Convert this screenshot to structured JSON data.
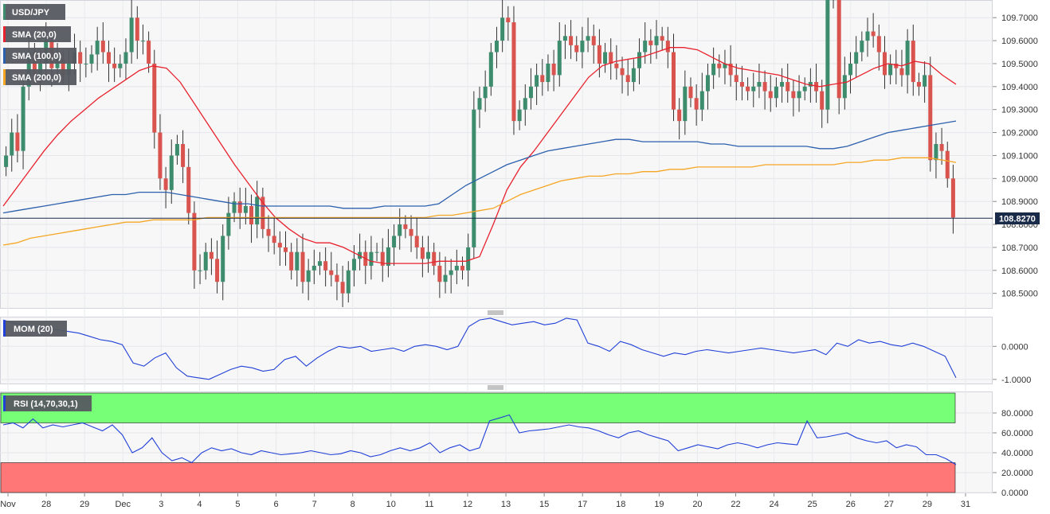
{
  "chart_data": [
    {
      "type": "candlestick",
      "symbol": "USD/JPY",
      "title": "USD/JPY",
      "x_labels": [
        "Nov",
        "28",
        "29",
        "Dec",
        "3",
        "4",
        "5",
        "6",
        "7",
        "8",
        "10",
        "11",
        "12",
        "13",
        "15",
        "17",
        "18",
        "19",
        "20",
        "22",
        "24",
        "25",
        "26",
        "27",
        "29",
        "31"
      ],
      "ylim": [
        108.44,
        109.77
      ],
      "y_ticks": [
        "109.7000",
        "109.6000",
        "109.5000",
        "109.4000",
        "109.3000",
        "109.2000",
        "109.1000",
        "109.0000",
        "108.9000",
        "108.8000",
        "108.7000",
        "108.6000",
        "108.5000"
      ],
      "last_price": "108.8270",
      "last_price_value": 108.827,
      "colors": {
        "up": "#3d8c6e",
        "down": "#d9534f",
        "sma20": "#e8222e",
        "sma100": "#2c5fad",
        "sma200": "#f5a623",
        "price_line": "#1a2b4a"
      },
      "candles_close": [
        109.1,
        109.2,
        109.12,
        109.4,
        109.55,
        109.45,
        109.5,
        109.6,
        109.48,
        109.52,
        109.45,
        109.5,
        109.55,
        109.5,
        109.5,
        109.54,
        109.6,
        109.55,
        109.5,
        109.48,
        109.5,
        109.55,
        109.7,
        109.6,
        109.6,
        109.5,
        109.2,
        109.0,
        108.95,
        109.1,
        109.15,
        109.05,
        108.85,
        108.6,
        108.6,
        108.68,
        108.65,
        108.55,
        108.75,
        108.85,
        108.9,
        108.85,
        108.88,
        108.8,
        108.92,
        108.78,
        108.75,
        108.72,
        108.7,
        108.68,
        108.6,
        108.68,
        108.55,
        108.6,
        108.62,
        108.64,
        108.6,
        108.58,
        108.55,
        108.5,
        108.6,
        108.65,
        108.68,
        108.62,
        108.68,
        108.68,
        108.62,
        108.7,
        108.75,
        108.8,
        108.78,
        108.75,
        108.7,
        108.65,
        108.68,
        108.62,
        108.55,
        108.58,
        108.6,
        108.62,
        108.6,
        108.7,
        109.3,
        109.35,
        109.4,
        109.55,
        109.6,
        109.7,
        109.68,
        109.25,
        109.3,
        109.35,
        109.4,
        109.45,
        109.42,
        109.5,
        109.45,
        109.6,
        109.62,
        109.58,
        109.55,
        109.6,
        109.62,
        109.58,
        109.5,
        109.55,
        109.5,
        109.48,
        109.45,
        109.42,
        109.48,
        109.55,
        109.6,
        109.58,
        109.62,
        109.6,
        109.55,
        109.3,
        109.25,
        109.4,
        109.35,
        109.3,
        109.38,
        109.45,
        109.5,
        109.48,
        109.5,
        109.45,
        109.42,
        109.4,
        109.38,
        109.4,
        109.42,
        109.38,
        109.35,
        109.4,
        109.42,
        109.38,
        109.35,
        109.38,
        109.4,
        109.42,
        109.38,
        109.3,
        109.78,
        109.78,
        109.35,
        109.45,
        109.5,
        109.55,
        109.6,
        109.64,
        109.62,
        109.55,
        109.45,
        109.5,
        109.48,
        109.45,
        109.6,
        109.42,
        109.4,
        109.45,
        109.08,
        109.15,
        109.12,
        109.0,
        108.83
      ],
      "series": [
        {
          "name": "SMA (20,0)",
          "color": "#e8222e",
          "values": [
            108.88,
            108.96,
            109.04,
            109.12,
            109.19,
            109.25,
            109.3,
            109.35,
            109.39,
            109.43,
            109.47,
            109.49,
            109.48,
            109.42,
            109.33,
            109.24,
            109.15,
            109.06,
            108.98,
            108.9,
            108.83,
            108.78,
            108.74,
            108.72,
            108.72,
            108.7,
            108.67,
            108.64,
            108.63,
            108.63,
            108.63,
            108.63,
            108.64,
            108.64,
            108.64,
            108.66,
            108.8,
            108.95,
            109.05,
            109.12,
            109.2,
            109.28,
            109.36,
            109.44,
            109.49,
            109.51,
            109.52,
            109.53,
            109.55,
            109.57,
            109.57,
            109.56,
            109.53,
            109.5,
            109.48,
            109.47,
            109.46,
            109.45,
            109.43,
            109.41,
            109.4,
            109.41,
            109.42,
            109.45,
            109.48,
            109.5,
            109.49,
            109.51,
            109.5,
            109.45,
            109.41
          ]
        },
        {
          "name": "SMA (100,0)",
          "color": "#2c5fad",
          "values": [
            108.85,
            108.86,
            108.87,
            108.88,
            108.89,
            108.9,
            108.91,
            108.92,
            108.93,
            108.93,
            108.94,
            108.94,
            108.94,
            108.93,
            108.92,
            108.91,
            108.9,
            108.89,
            108.89,
            108.88,
            108.88,
            108.88,
            108.88,
            108.88,
            108.88,
            108.87,
            108.87,
            108.87,
            108.88,
            108.88,
            108.88,
            108.88,
            108.89,
            108.93,
            108.97,
            109.0,
            109.03,
            109.06,
            109.08,
            109.1,
            109.12,
            109.13,
            109.14,
            109.15,
            109.16,
            109.17,
            109.17,
            109.16,
            109.16,
            109.16,
            109.16,
            109.16,
            109.15,
            109.15,
            109.14,
            109.14,
            109.14,
            109.14,
            109.14,
            109.14,
            109.13,
            109.13,
            109.14,
            109.16,
            109.18,
            109.2,
            109.21,
            109.22,
            109.23,
            109.24,
            109.25
          ]
        },
        {
          "name": "SMA (200,0)",
          "color": "#f5a623",
          "values": [
            108.71,
            108.72,
            108.74,
            108.75,
            108.76,
            108.77,
            108.78,
            108.79,
            108.8,
            108.81,
            108.81,
            108.82,
            108.82,
            108.82,
            108.82,
            108.83,
            108.83,
            108.83,
            108.83,
            108.83,
            108.83,
            108.83,
            108.83,
            108.83,
            108.83,
            108.83,
            108.83,
            108.83,
            108.83,
            108.83,
            108.83,
            108.83,
            108.84,
            108.84,
            108.85,
            108.86,
            108.87,
            108.9,
            108.93,
            108.95,
            108.97,
            108.99,
            109.0,
            109.01,
            109.01,
            109.02,
            109.02,
            109.03,
            109.03,
            109.04,
            109.04,
            109.05,
            109.05,
            109.05,
            109.05,
            109.05,
            109.06,
            109.06,
            109.06,
            109.06,
            109.06,
            109.06,
            109.07,
            109.07,
            109.08,
            109.08,
            109.09,
            109.09,
            109.09,
            109.08,
            109.07
          ]
        }
      ]
    },
    {
      "type": "line",
      "title": "MOM (20)",
      "ylim": [
        -1.1,
        0.85
      ],
      "y_ticks": [
        "0.0000",
        "-1.0000"
      ],
      "color": "#2140d8",
      "series": [
        {
          "name": "MOM (20)",
          "values": [
            0.8,
            0.7,
            0.65,
            0.6,
            0.55,
            0.5,
            0.45,
            0.4,
            0.3,
            0.2,
            0.15,
            0.05,
            -0.5,
            -0.6,
            -0.35,
            -0.2,
            -0.65,
            -0.9,
            -0.95,
            -1.0,
            -0.85,
            -0.7,
            -0.6,
            -0.65,
            -0.75,
            -0.7,
            -0.4,
            -0.3,
            -0.6,
            -0.35,
            -0.15,
            0.0,
            -0.05,
            0.0,
            -0.15,
            -0.1,
            -0.05,
            -0.15,
            0.0,
            0.05,
            0.0,
            -0.1,
            0.0,
            0.6,
            0.8,
            0.85,
            0.75,
            0.65,
            0.7,
            0.75,
            0.65,
            0.7,
            0.85,
            0.8,
            0.1,
            0.0,
            -0.15,
            0.15,
            0.05,
            -0.1,
            -0.2,
            -0.3,
            -0.2,
            -0.25,
            -0.15,
            -0.1,
            -0.15,
            -0.2,
            -0.15,
            -0.1,
            -0.05,
            -0.1,
            -0.15,
            -0.2,
            -0.15,
            -0.1,
            -0.25,
            0.1,
            0.0,
            0.2,
            0.1,
            0.15,
            0.05,
            0.0,
            0.1,
            0.0,
            -0.15,
            -0.3,
            -0.95
          ]
        }
      ]
    },
    {
      "type": "line",
      "title": "RSI (14,70,30,1)",
      "ylim": [
        0,
        100
      ],
      "y_ticks": [
        "80.0000",
        "60.0000",
        "40.0000",
        "20.0000",
        "0.0000"
      ],
      "overbought": 70,
      "oversold": 30,
      "zone_colors": {
        "overbought": "#77ff77",
        "oversold": "#ff7777"
      },
      "color": "#2140d8",
      "series": [
        {
          "name": "RSI (14,70,30,1)",
          "values": [
            68,
            70,
            65,
            74,
            65,
            68,
            66,
            68,
            70,
            66,
            62,
            68,
            58,
            40,
            45,
            55,
            40,
            32,
            35,
            30,
            40,
            45,
            42,
            44,
            40,
            38,
            42,
            40,
            38,
            39,
            40,
            42,
            40,
            38,
            39,
            42,
            40,
            36,
            38,
            42,
            45,
            42,
            45,
            50,
            40,
            45,
            48,
            42,
            45,
            72,
            75,
            78,
            60,
            62,
            63,
            64,
            66,
            68,
            66,
            65,
            62,
            58,
            55,
            60,
            62,
            58,
            55,
            52,
            42,
            45,
            48,
            46,
            44,
            48,
            50,
            48,
            45,
            48,
            50,
            49,
            48,
            72,
            55,
            56,
            58,
            60,
            55,
            52,
            50,
            52,
            45,
            48,
            46,
            38,
            38,
            34,
            28
          ]
        }
      ]
    }
  ],
  "legends": {
    "symbol": "USD/JPY",
    "sma20": "SMA (20,0)",
    "sma100": "SMA (100,0)",
    "sma200": "SMA (200,0)",
    "mom": "MOM (20)",
    "rsi": "RSI (14,70,30,1)"
  }
}
